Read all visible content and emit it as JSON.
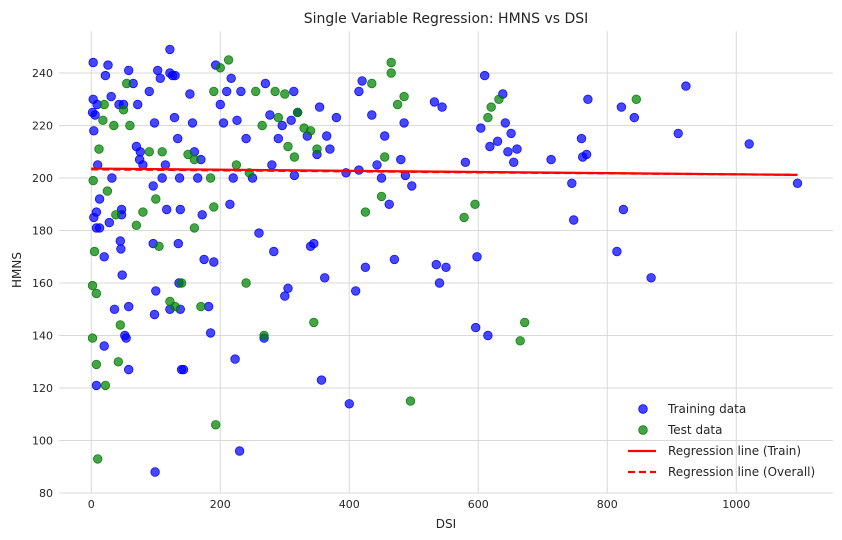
{
  "chart_data": {
    "type": "scatter",
    "title": "Single Variable Regression: HMNS vs DSI",
    "xlabel": "DSI",
    "ylabel": "HMNS",
    "xlim": [
      -50,
      1150
    ],
    "ylim": [
      80,
      256
    ],
    "x_ticks": [
      0,
      200,
      400,
      600,
      800,
      1000
    ],
    "y_ticks": [
      80,
      100,
      120,
      140,
      160,
      180,
      200,
      220,
      240
    ],
    "grid": true,
    "legend_position": "bottom-right",
    "colors": {
      "training": "#0000ff",
      "test": "#008000",
      "line_train": "#ff0000",
      "line_overall": "#ff0000",
      "grid": "#d9d9d9",
      "background": "#ffffff"
    },
    "series": [
      {
        "name": "Training data",
        "kind": "scatter",
        "color": "#0000ff",
        "points": [
          [
            3,
            244
          ],
          [
            3,
            230
          ],
          [
            2,
            225
          ],
          [
            6,
            224
          ],
          [
            9,
            228
          ],
          [
            4,
            218
          ],
          [
            4,
            185
          ],
          [
            8,
            187
          ],
          [
            10,
            205
          ],
          [
            13,
            192
          ],
          [
            8,
            181
          ],
          [
            13,
            181
          ],
          [
            8,
            121
          ],
          [
            20,
            136
          ],
          [
            20,
            170
          ],
          [
            28,
            183
          ],
          [
            32,
            200
          ],
          [
            22,
            239
          ],
          [
            26,
            243
          ],
          [
            31,
            231
          ],
          [
            36,
            150
          ],
          [
            43,
            228
          ],
          [
            50,
            228
          ],
          [
            47,
            188
          ],
          [
            47,
            186
          ],
          [
            45,
            176
          ],
          [
            46,
            173
          ],
          [
            48,
            163
          ],
          [
            52,
            140
          ],
          [
            54,
            139
          ],
          [
            58,
            151
          ],
          [
            58,
            127
          ],
          [
            58,
            241
          ],
          [
            65,
            236
          ],
          [
            72,
            228
          ],
          [
            70,
            212
          ],
          [
            75,
            207
          ],
          [
            76,
            210
          ],
          [
            80,
            205
          ],
          [
            90,
            233
          ],
          [
            98,
            221
          ],
          [
            96,
            197
          ],
          [
            96,
            175
          ],
          [
            100,
            157
          ],
          [
            98,
            148
          ],
          [
            99,
            88
          ],
          [
            103,
            241
          ],
          [
            107,
            238
          ],
          [
            110,
            200
          ],
          [
            115,
            205
          ],
          [
            117,
            188
          ],
          [
            122,
            150
          ],
          [
            122,
            249
          ],
          [
            122,
            240
          ],
          [
            126,
            239
          ],
          [
            130,
            239
          ],
          [
            129,
            223
          ],
          [
            134,
            215
          ],
          [
            137,
            200
          ],
          [
            138,
            188
          ],
          [
            135,
            175
          ],
          [
            136,
            160
          ],
          [
            138,
            150
          ],
          [
            140,
            127
          ],
          [
            143,
            127
          ],
          [
            153,
            232
          ],
          [
            157,
            221
          ],
          [
            160,
            210
          ],
          [
            165,
            200
          ],
          [
            170,
            207
          ],
          [
            172,
            186
          ],
          [
            175,
            169
          ],
          [
            182,
            151
          ],
          [
            185,
            141
          ],
          [
            190,
            168
          ],
          [
            193,
            243
          ],
          [
            200,
            228
          ],
          [
            205,
            221
          ],
          [
            210,
            233
          ],
          [
            215,
            190
          ],
          [
            217,
            238
          ],
          [
            220,
            200
          ],
          [
            223,
            131
          ],
          [
            226,
            222
          ],
          [
            230,
            96
          ],
          [
            232,
            233
          ],
          [
            240,
            215
          ],
          [
            250,
            200
          ],
          [
            260,
            179
          ],
          [
            268,
            139
          ],
          [
            270,
            236
          ],
          [
            277,
            224
          ],
          [
            280,
            205
          ],
          [
            283,
            172
          ],
          [
            290,
            215
          ],
          [
            296,
            220
          ],
          [
            300,
            155
          ],
          [
            305,
            158
          ],
          [
            310,
            222
          ],
          [
            314,
            233
          ],
          [
            315,
            201
          ],
          [
            320,
            225
          ],
          [
            335,
            216
          ],
          [
            340,
            174
          ],
          [
            345,
            175
          ],
          [
            350,
            209
          ],
          [
            354,
            227
          ],
          [
            357,
            123
          ],
          [
            362,
            162
          ],
          [
            365,
            216
          ],
          [
            370,
            211
          ],
          [
            380,
            223
          ],
          [
            395,
            202
          ],
          [
            400,
            114
          ],
          [
            410,
            157
          ],
          [
            415,
            203
          ],
          [
            415,
            233
          ],
          [
            420,
            237
          ],
          [
            425,
            166
          ],
          [
            435,
            224
          ],
          [
            443,
            205
          ],
          [
            450,
            200
          ],
          [
            455,
            216
          ],
          [
            462,
            190
          ],
          [
            470,
            169
          ],
          [
            480,
            207
          ],
          [
            485,
            221
          ],
          [
            487,
            201
          ],
          [
            497,
            197
          ],
          [
            532,
            229
          ],
          [
            535,
            167
          ],
          [
            540,
            160
          ],
          [
            544,
            227
          ],
          [
            550,
            166
          ],
          [
            580,
            206
          ],
          [
            596,
            143
          ],
          [
            598,
            170
          ],
          [
            604,
            219
          ],
          [
            610,
            239
          ],
          [
            615,
            140
          ],
          [
            618,
            212
          ],
          [
            630,
            214
          ],
          [
            638,
            232
          ],
          [
            642,
            221
          ],
          [
            646,
            210
          ],
          [
            651,
            217
          ],
          [
            655,
            206
          ],
          [
            660,
            211
          ],
          [
            713,
            207
          ],
          [
            745,
            198
          ],
          [
            748,
            184
          ],
          [
            760,
            215
          ],
          [
            762,
            208
          ],
          [
            768,
            209
          ],
          [
            770,
            230
          ],
          [
            815,
            172
          ],
          [
            822,
            227
          ],
          [
            825,
            188
          ],
          [
            842,
            223
          ],
          [
            868,
            162
          ],
          [
            910,
            217
          ],
          [
            922,
            235
          ],
          [
            1020,
            213
          ],
          [
            1095,
            198
          ]
        ]
      },
      {
        "name": "Test data",
        "kind": "scatter",
        "color": "#008000",
        "points": [
          [
            3,
            199
          ],
          [
            2,
            159
          ],
          [
            2,
            139
          ],
          [
            5,
            172
          ],
          [
            8,
            156
          ],
          [
            8,
            129
          ],
          [
            10,
            93
          ],
          [
            12,
            211
          ],
          [
            18,
            222
          ],
          [
            20,
            228
          ],
          [
            22,
            121
          ],
          [
            25,
            195
          ],
          [
            35,
            220
          ],
          [
            38,
            186
          ],
          [
            42,
            130
          ],
          [
            45,
            144
          ],
          [
            50,
            226
          ],
          [
            55,
            236
          ],
          [
            60,
            220
          ],
          [
            70,
            182
          ],
          [
            80,
            187
          ],
          [
            90,
            210
          ],
          [
            100,
            192
          ],
          [
            105,
            174
          ],
          [
            110,
            210
          ],
          [
            122,
            153
          ],
          [
            130,
            151
          ],
          [
            140,
            160
          ],
          [
            150,
            209
          ],
          [
            160,
            207
          ],
          [
            160,
            181
          ],
          [
            170,
            151
          ],
          [
            185,
            200
          ],
          [
            190,
            189
          ],
          [
            190,
            233
          ],
          [
            193,
            106
          ],
          [
            200,
            242
          ],
          [
            213,
            245
          ],
          [
            225,
            205
          ],
          [
            240,
            160
          ],
          [
            245,
            202
          ],
          [
            255,
            233
          ],
          [
            265,
            220
          ],
          [
            268,
            140
          ],
          [
            285,
            233
          ],
          [
            290,
            223
          ],
          [
            300,
            232
          ],
          [
            305,
            212
          ],
          [
            315,
            208
          ],
          [
            320,
            225
          ],
          [
            330,
            219
          ],
          [
            340,
            218
          ],
          [
            345,
            145
          ],
          [
            350,
            211
          ],
          [
            425,
            187
          ],
          [
            435,
            236
          ],
          [
            450,
            193
          ],
          [
            455,
            208
          ],
          [
            465,
            244
          ],
          [
            465,
            240
          ],
          [
            475,
            228
          ],
          [
            485,
            231
          ],
          [
            495,
            115
          ],
          [
            578,
            185
          ],
          [
            595,
            190
          ],
          [
            615,
            223
          ],
          [
            620,
            227
          ],
          [
            632,
            230
          ],
          [
            665,
            138
          ],
          [
            672,
            145
          ],
          [
            845,
            230
          ]
        ]
      },
      {
        "name": "Regression line (Train)",
        "kind": "line",
        "style": "solid",
        "color": "#ff0000",
        "x": [
          0,
          1095
        ],
        "y": [
          203.6,
          201.2
        ]
      },
      {
        "name": "Regression line (Overall)",
        "kind": "line",
        "style": "dashed",
        "color": "#ff0000",
        "x": [
          0,
          1095
        ],
        "y": [
          203.3,
          201.2
        ]
      }
    ]
  }
}
